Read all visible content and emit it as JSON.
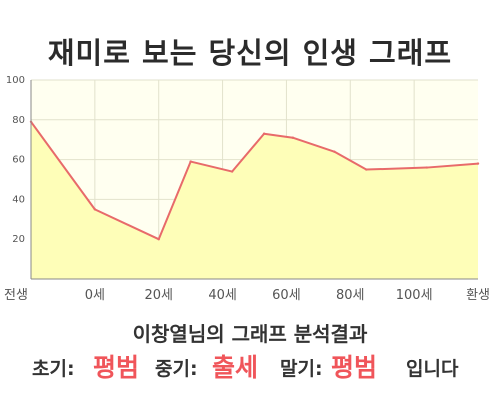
{
  "title": "재미로 보는 당신의 인생 그래프",
  "result": {
    "heading": "이창열님의 그래프 분석결과",
    "early_label": "초기:",
    "early_value": "평범",
    "middle_label": "중기:",
    "middle_value": "출세",
    "late_label": "말기:",
    "late_value": "평범",
    "suffix": "입니다"
  },
  "chart_data": {
    "type": "area",
    "title": "",
    "xlabel": "",
    "ylabel": "",
    "x_tick_labels": [
      "전생",
      "0세",
      "20세",
      "40세",
      "60세",
      "80세",
      "100세",
      "환생"
    ],
    "y_ticks": [
      20,
      40,
      60,
      80,
      100
    ],
    "ylim": [
      0,
      100
    ],
    "x_range": [
      0,
      7
    ],
    "grid": true,
    "colors": {
      "line": "#e86a6a",
      "fill": "#fefeb8",
      "plot_background": "#fffff0",
      "grid": "#e2e2cc"
    },
    "series": [
      {
        "points": [
          {
            "x": 0,
            "y": 79
          },
          {
            "x": 1,
            "y": 35
          },
          {
            "x": 2,
            "y": 20
          },
          {
            "x": 2.5,
            "y": 59
          },
          {
            "x": 3.15,
            "y": 54
          },
          {
            "x": 3.65,
            "y": 73
          },
          {
            "x": 4.1,
            "y": 71
          },
          {
            "x": 4.75,
            "y": 64
          },
          {
            "x": 5.25,
            "y": 55
          },
          {
            "x": 6.2,
            "y": 56
          },
          {
            "x": 7,
            "y": 58
          }
        ]
      }
    ]
  }
}
